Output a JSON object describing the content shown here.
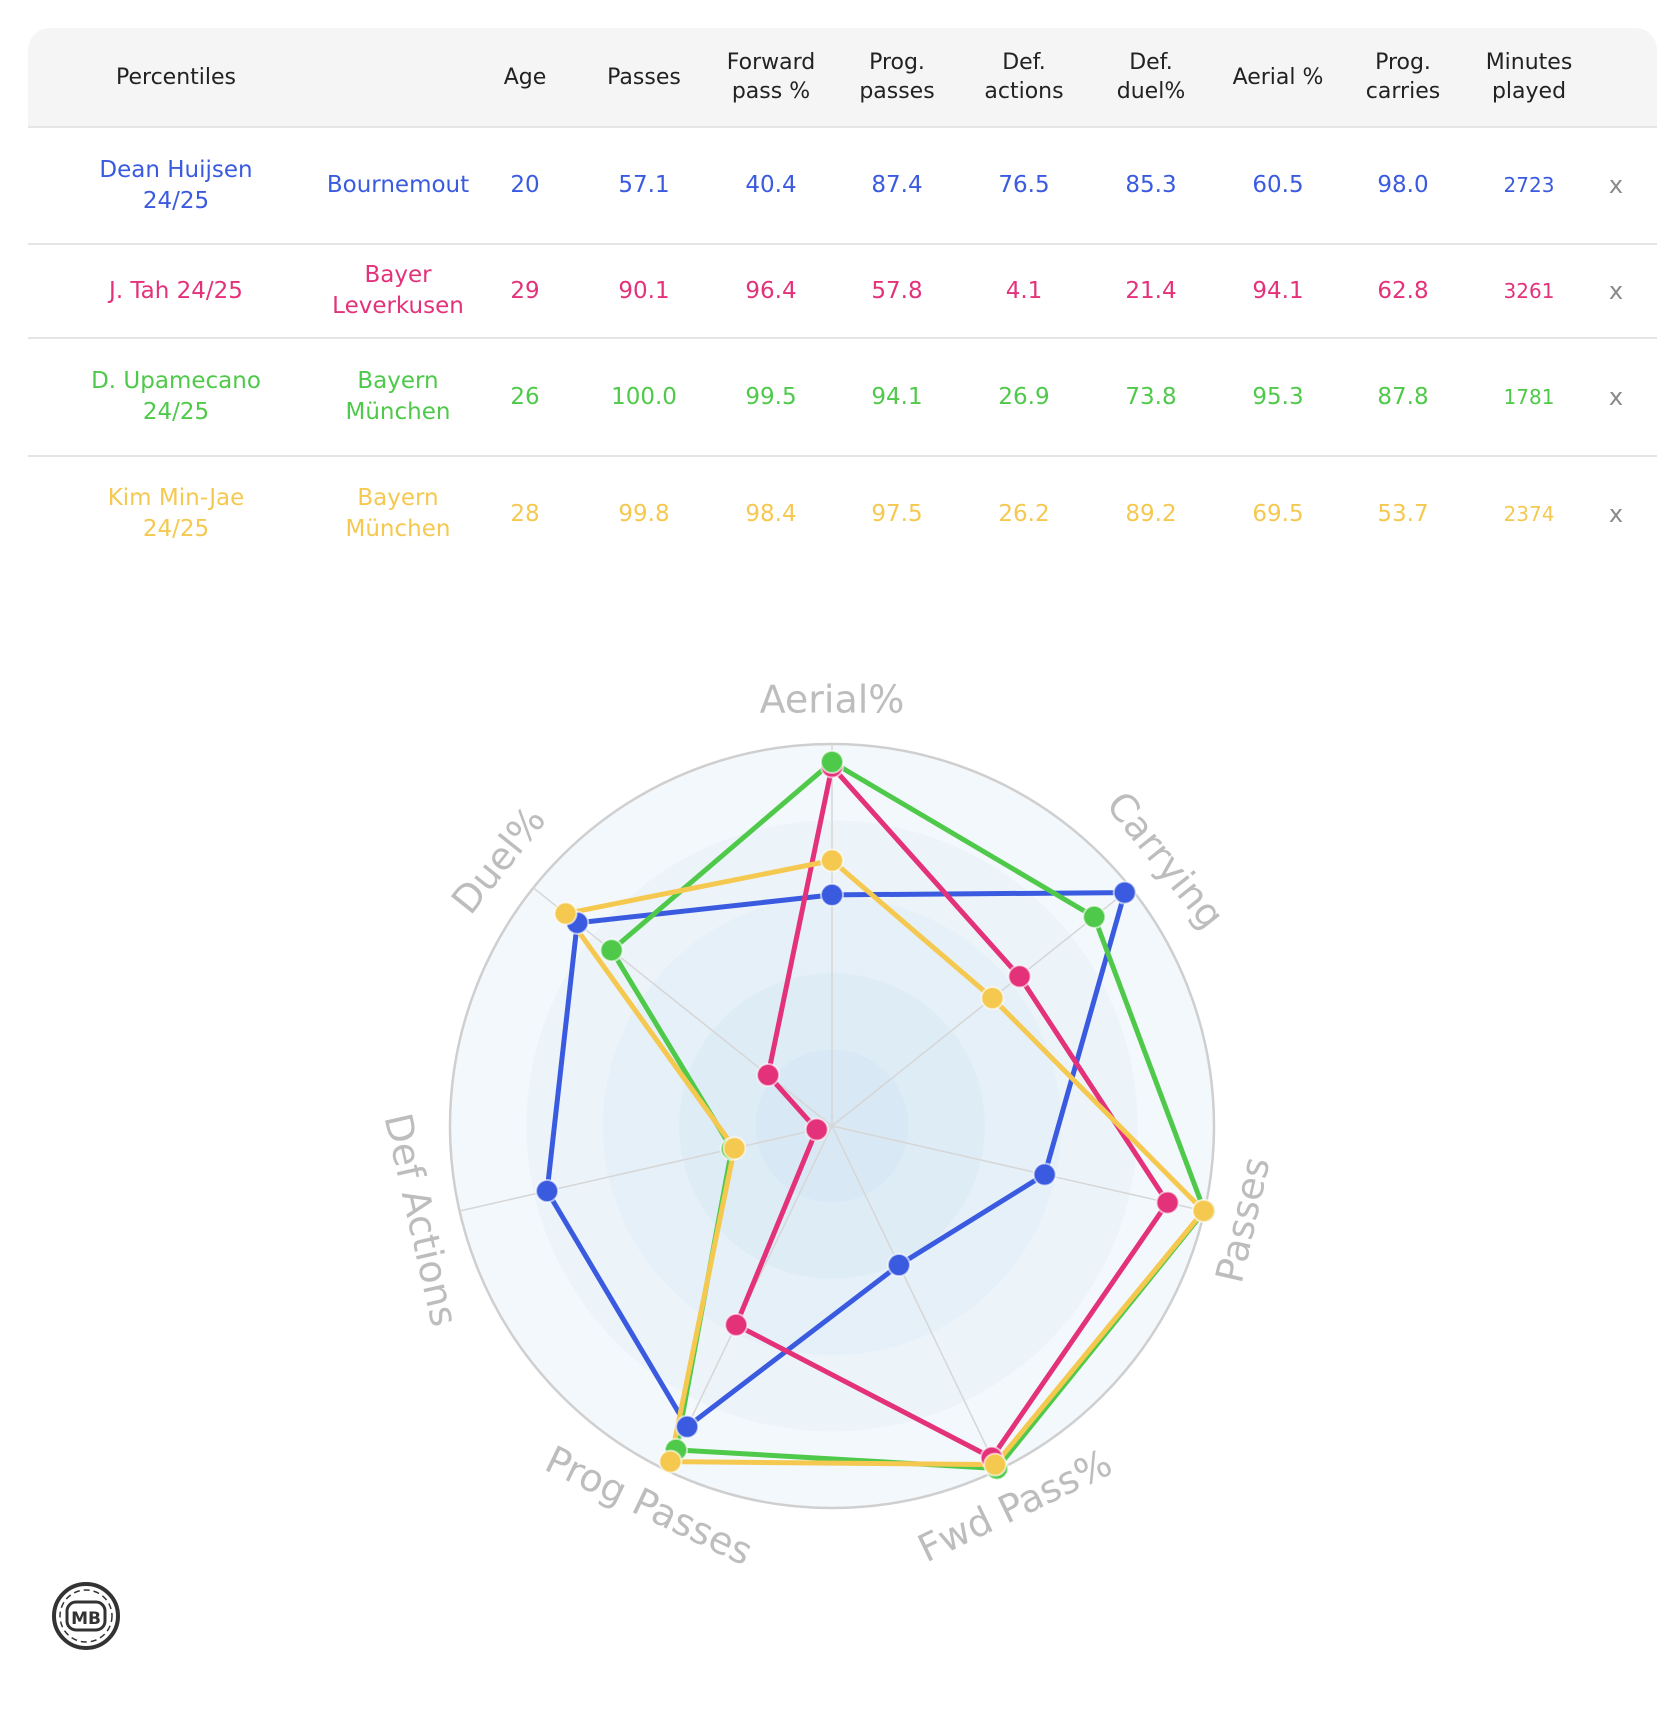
{
  "table": {
    "header_label": "Percentiles",
    "columns": [
      "Age",
      "Passes",
      "Forward\npass %",
      "Prog.\npasses",
      "Def.\nactions",
      "Def.\nduel%",
      "Aerial %",
      "Prog.\ncarries",
      "Minutes\nplayed"
    ],
    "remove_label": "x",
    "rows": [
      {
        "player": "Dean Huijsen\n24/25",
        "team": "Bournemout",
        "color": "#3a5be0",
        "values": [
          "20",
          "57.1",
          "40.4",
          "87.4",
          "76.5",
          "85.3",
          "60.5",
          "98.0",
          "2723"
        ]
      },
      {
        "player": "J. Tah 24/25",
        "team": "Bayer\nLeverkusen",
        "color": "#e3327a",
        "values": [
          "29",
          "90.1",
          "96.4",
          "57.8",
          "4.1",
          "21.4",
          "94.1",
          "62.8",
          "3261"
        ]
      },
      {
        "player": "D. Upamecano\n24/25",
        "team": "Bayern\nMünchen",
        "color": "#4fc94a",
        "values": [
          "26",
          "100.0",
          "99.5",
          "94.1",
          "26.9",
          "73.8",
          "95.3",
          "87.8",
          "1781"
        ]
      },
      {
        "player": "Kim Min-Jae\n24/25",
        "team": "Bayern\nMünchen",
        "color": "#f5c850",
        "values": [
          "28",
          "99.8",
          "98.4",
          "97.5",
          "26.2",
          "89.2",
          "69.5",
          "53.7",
          "2374"
        ]
      }
    ]
  },
  "chart_data": {
    "type": "radar",
    "axes": [
      "Aerial%",
      "Carrying",
      "Passes",
      "Fwd Pass%",
      "Prog Passes",
      "Def Actions",
      "Duel%"
    ],
    "range": [
      0,
      100
    ],
    "series": [
      {
        "name": "Dean Huijsen 24/25",
        "color": "#3a5be0",
        "values": [
          60.5,
          98.0,
          57.1,
          40.4,
          87.4,
          76.5,
          85.3
        ]
      },
      {
        "name": "J. Tah 24/25",
        "color": "#e3327a",
        "values": [
          94.1,
          62.8,
          90.1,
          96.4,
          57.8,
          4.1,
          21.4
        ]
      },
      {
        "name": "D. Upamecano 24/25",
        "color": "#4fc94a",
        "values": [
          95.3,
          87.8,
          100.0,
          99.5,
          94.1,
          26.9,
          73.8
        ]
      },
      {
        "name": "Kim Min-Jae 24/25",
        "color": "#f5c850",
        "values": [
          69.5,
          53.7,
          99.8,
          98.4,
          97.5,
          26.2,
          89.2
        ]
      }
    ]
  },
  "logo": {
    "text": "MB",
    "icon": "mb-logo-icon"
  }
}
